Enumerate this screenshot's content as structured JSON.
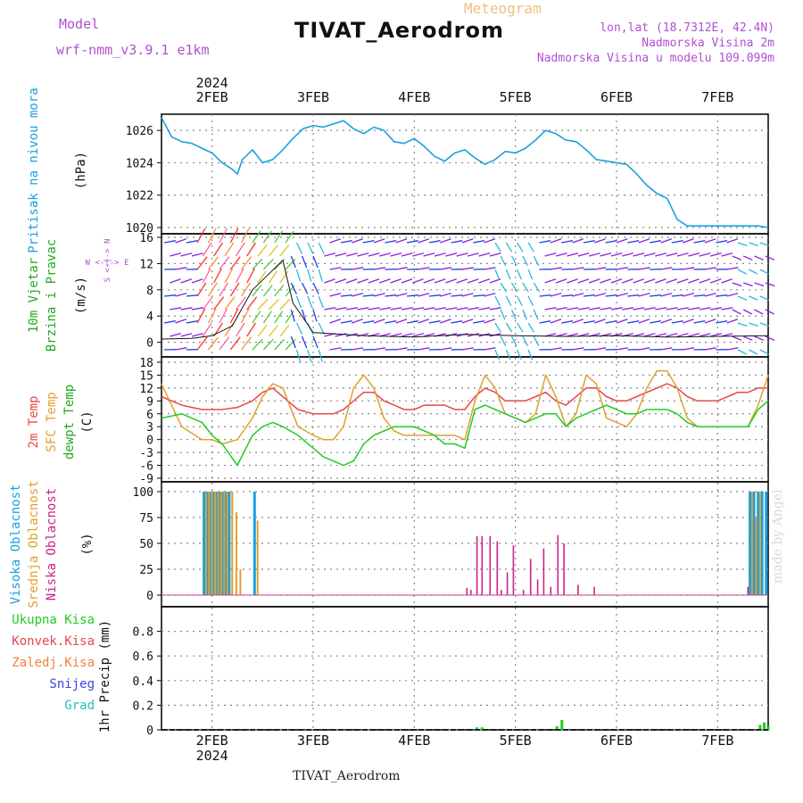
{
  "header": {
    "model_label": "Model",
    "model_name": "wrf-nmm_v3.9.1  e1km",
    "meteogram_label": "Meteogram",
    "station_title": "TIVAT_Aerodrom",
    "lonlat": "lon,lat (18.7312E, 42.4N)",
    "elevation": "Nadmorska Visina 2m",
    "model_elevation": "Nadmorska Visina u modelu 109.099m",
    "footer_title": "TIVAT_Aerodrom",
    "credit": "made by Angel"
  },
  "colors": {
    "pressure": "#1aa0e0",
    "temp2m": "#e84848",
    "sfc_temp": "#e0a030",
    "dewpoint": "#22cc22",
    "high_cloud": "#1aa0e0",
    "mid_cloud": "#e0a030",
    "low_cloud": "#cc2288",
    "total_precip": "#22cc22",
    "label_purple": "#b050d0",
    "wind_purple": "#8a22dd",
    "wind_cyan": "#28b8d8",
    "wind_blue": "#2040e0"
  },
  "chart_data": [
    {
      "type": "line",
      "panel": "pressure",
      "ylabel": "(hPa)",
      "side_labels": [
        "Pritisak na nivou mora"
      ],
      "ylim": [
        1020,
        1027
      ],
      "yticks": [
        1020,
        1022,
        1024,
        1026
      ],
      "x_days": [
        1.5,
        1.6,
        1.7,
        1.8,
        1.9,
        2.0,
        2.1,
        2.2,
        2.25,
        2.3,
        2.4,
        2.5,
        2.6,
        2.7,
        2.8,
        2.9,
        3.0,
        3.1,
        3.2,
        3.3,
        3.4,
        3.5,
        3.6,
        3.7,
        3.8,
        3.9,
        4.0,
        4.1,
        4.2,
        4.3,
        4.4,
        4.5,
        4.6,
        4.7,
        4.8,
        4.9,
        5.0,
        5.1,
        5.2,
        5.3,
        5.4,
        5.5,
        5.6,
        5.7,
        5.8,
        5.9,
        6.0,
        6.1,
        6.2,
        6.3,
        6.4,
        6.5,
        6.6,
        6.7,
        6.8,
        6.9,
        7.0,
        7.1,
        7.2,
        7.3,
        7.4,
        7.5
      ],
      "values": [
        1026.8,
        1025.6,
        1025.3,
        1025.2,
        1024.9,
        1024.6,
        1024.0,
        1023.6,
        1023.3,
        1024.2,
        1024.8,
        1024.0,
        1024.2,
        1024.8,
        1025.5,
        1026.1,
        1026.3,
        1026.2,
        1026.4,
        1026.6,
        1026.1,
        1025.8,
        1026.2,
        1026.0,
        1025.3,
        1025.2,
        1025.5,
        1025.0,
        1024.4,
        1024.1,
        1024.6,
        1024.8,
        1024.3,
        1023.9,
        1024.2,
        1024.7,
        1024.6,
        1024.9,
        1025.4,
        1026.0,
        1025.8,
        1025.4,
        1025.3,
        1024.8,
        1024.2,
        1024.1,
        1024.0,
        1023.9,
        1023.3,
        1022.6,
        1022.1,
        1021.8,
        1020.5,
        1020.1,
        1020.1,
        1020.1,
        1020.1,
        1020.1,
        1020.1,
        1020.1,
        1020.1,
        1020.0
      ]
    },
    {
      "type": "line",
      "panel": "wind",
      "ylabel": "(m/s)",
      "side_labels": [
        "10m Vjetar",
        "Brzina i Pravac"
      ],
      "compass_label": "W <-|-> E",
      "compass_ns": "S <-|-> N",
      "ylim": [
        -1,
        16
      ],
      "yticks": [
        0,
        4,
        8,
        12,
        16
      ],
      "x_days": [
        1.5,
        1.8,
        2.0,
        2.2,
        2.4,
        2.6,
        2.7,
        2.8,
        3.0,
        3.5,
        4.0,
        4.5,
        5.0,
        5.5,
        6.0,
        6.5,
        7.0,
        7.5
      ],
      "speed": [
        0.5,
        0.6,
        1.0,
        2.5,
        8.0,
        11.0,
        12.5,
        6.0,
        1.5,
        1.0,
        0.8,
        1.2,
        1.0,
        0.9,
        1.0,
        0.8,
        0.9,
        1.0
      ]
    },
    {
      "type": "line",
      "panel": "temperature",
      "ylabel": "(C)",
      "side_labels": [
        "2m Temp",
        "SFC Temp",
        "dewpt Temp"
      ],
      "ylim": [
        -9,
        18
      ],
      "yticks": [
        -9,
        -6,
        -3,
        0,
        3,
        6,
        9,
        12,
        15,
        18
      ],
      "x_days": [
        1.5,
        1.7,
        1.9,
        2.0,
        2.1,
        2.25,
        2.4,
        2.5,
        2.6,
        2.7,
        2.85,
        3.0,
        3.1,
        3.2,
        3.3,
        3.4,
        3.5,
        3.6,
        3.7,
        3.8,
        3.9,
        4.0,
        4.1,
        4.2,
        4.3,
        4.4,
        4.5,
        4.6,
        4.7,
        4.8,
        4.9,
        5.0,
        5.1,
        5.2,
        5.3,
        5.4,
        5.5,
        5.6,
        5.7,
        5.8,
        5.9,
        6.0,
        6.1,
        6.2,
        6.3,
        6.4,
        6.5,
        6.6,
        6.7,
        6.8,
        6.9,
        7.0,
        7.1,
        7.2,
        7.3,
        7.4,
        7.5
      ],
      "series": [
        {
          "name": "2m Temp",
          "values": [
            10,
            8,
            7,
            7,
            7,
            7.5,
            9,
            11,
            12,
            10,
            7,
            6,
            6,
            6,
            7,
            9,
            11,
            11,
            9,
            8,
            7,
            7,
            8,
            8,
            8,
            7,
            7,
            10,
            12,
            11,
            9,
            9,
            9,
            10,
            11,
            9,
            8,
            10,
            12,
            12,
            10,
            9,
            9,
            10,
            11,
            12,
            13,
            12,
            10,
            9,
            9,
            9,
            10,
            11,
            11,
            12,
            12
          ]
        },
        {
          "name": "SFC Temp",
          "values": [
            13,
            3,
            0,
            0,
            -1,
            0,
            5,
            10,
            13,
            12,
            3,
            1,
            0,
            0,
            3,
            12,
            15,
            12,
            5,
            2,
            1,
            1,
            1,
            1,
            1,
            1,
            0,
            9,
            15,
            12,
            6,
            5,
            4,
            6,
            15,
            10,
            3,
            6,
            15,
            13,
            5,
            4,
            3,
            6,
            12,
            16,
            16,
            12,
            5,
            3,
            3,
            3,
            3,
            3,
            3,
            8,
            15
          ]
        },
        {
          "name": "dewpt Temp",
          "values": [
            5,
            6,
            4,
            1,
            -1,
            -6,
            1,
            3,
            4,
            3,
            1,
            -2,
            -4,
            -5,
            -6,
            -5,
            -1,
            1,
            2,
            3,
            3,
            3,
            2,
            1,
            -1,
            -1,
            -2,
            7,
            8,
            7,
            6,
            5,
            4,
            5,
            6,
            6,
            3,
            5,
            6,
            7,
            8,
            7,
            6,
            6,
            7,
            7,
            7,
            6,
            4,
            3,
            3,
            3,
            3,
            3,
            3,
            7,
            9
          ]
        }
      ]
    },
    {
      "type": "bar",
      "panel": "clouds",
      "ylabel": "(%)",
      "side_labels": [
        "Visoka Oblacnost",
        "Srednja Oblacnost",
        "Niska Oblacnost"
      ],
      "ylim": [
        0,
        100
      ],
      "yticks": [
        0,
        25,
        50,
        75,
        100
      ],
      "series": [
        {
          "name": "Visoka Oblacnost",
          "x": [
            1.92,
            1.95,
            1.98,
            2.01,
            2.04,
            2.07,
            2.1,
            2.13,
            2.17,
            2.42,
            7.32,
            7.36,
            7.4,
            7.44,
            7.48
          ],
          "values": [
            100,
            100,
            100,
            100,
            100,
            100,
            100,
            100,
            100,
            100,
            100,
            100,
            100,
            100,
            100
          ]
        },
        {
          "name": "Srednja Oblacnost",
          "x": [
            1.94,
            1.97,
            2.0,
            2.03,
            2.06,
            2.09,
            2.12,
            2.15,
            2.2,
            2.24,
            2.28,
            2.45,
            7.34,
            7.38,
            7.42
          ],
          "values": [
            100,
            100,
            100,
            100,
            100,
            100,
            100,
            100,
            100,
            80,
            25,
            72,
            100,
            75,
            100
          ]
        },
        {
          "name": "Niska Oblacnost",
          "x": [
            4.52,
            4.56,
            4.62,
            4.67,
            4.75,
            4.82,
            4.86,
            4.92,
            4.98,
            5.08,
            5.15,
            5.22,
            5.28,
            5.35,
            5.42,
            5.48,
            5.62,
            5.78,
            7.3
          ],
          "values": [
            7,
            5,
            57,
            57,
            57,
            52,
            5,
            22,
            48,
            5,
            35,
            15,
            45,
            8,
            58,
            50,
            10,
            8,
            8
          ]
        }
      ]
    },
    {
      "type": "bar",
      "panel": "precip",
      "ylabel": "1hr Precip (mm)",
      "side_labels": [
        "Ukupna Kisa",
        "Konvek.Kisa",
        "Zaledj.Kisa",
        "Snijeg",
        "Grad"
      ],
      "ylim": [
        0,
        1.0
      ],
      "yticks": [
        0,
        0.2,
        0.4,
        0.6,
        0.8
      ],
      "x": [
        4.62,
        4.67,
        5.41,
        5.46,
        7.42,
        7.46,
        7.5
      ],
      "values": [
        0.02,
        0.02,
        0.03,
        0.08,
        0.04,
        0.06,
        0.03
      ]
    }
  ],
  "x_axis": {
    "year": "2024",
    "ticks": [
      {
        "day": 2,
        "label": "2FEB"
      },
      {
        "day": 3,
        "label": "3FEB"
      },
      {
        "day": 4,
        "label": "4FEB"
      },
      {
        "day": 5,
        "label": "5FEB"
      },
      {
        "day": 6,
        "label": "6FEB"
      },
      {
        "day": 7,
        "label": "7FEB"
      }
    ],
    "xlim": [
      1.5,
      7.5
    ]
  }
}
